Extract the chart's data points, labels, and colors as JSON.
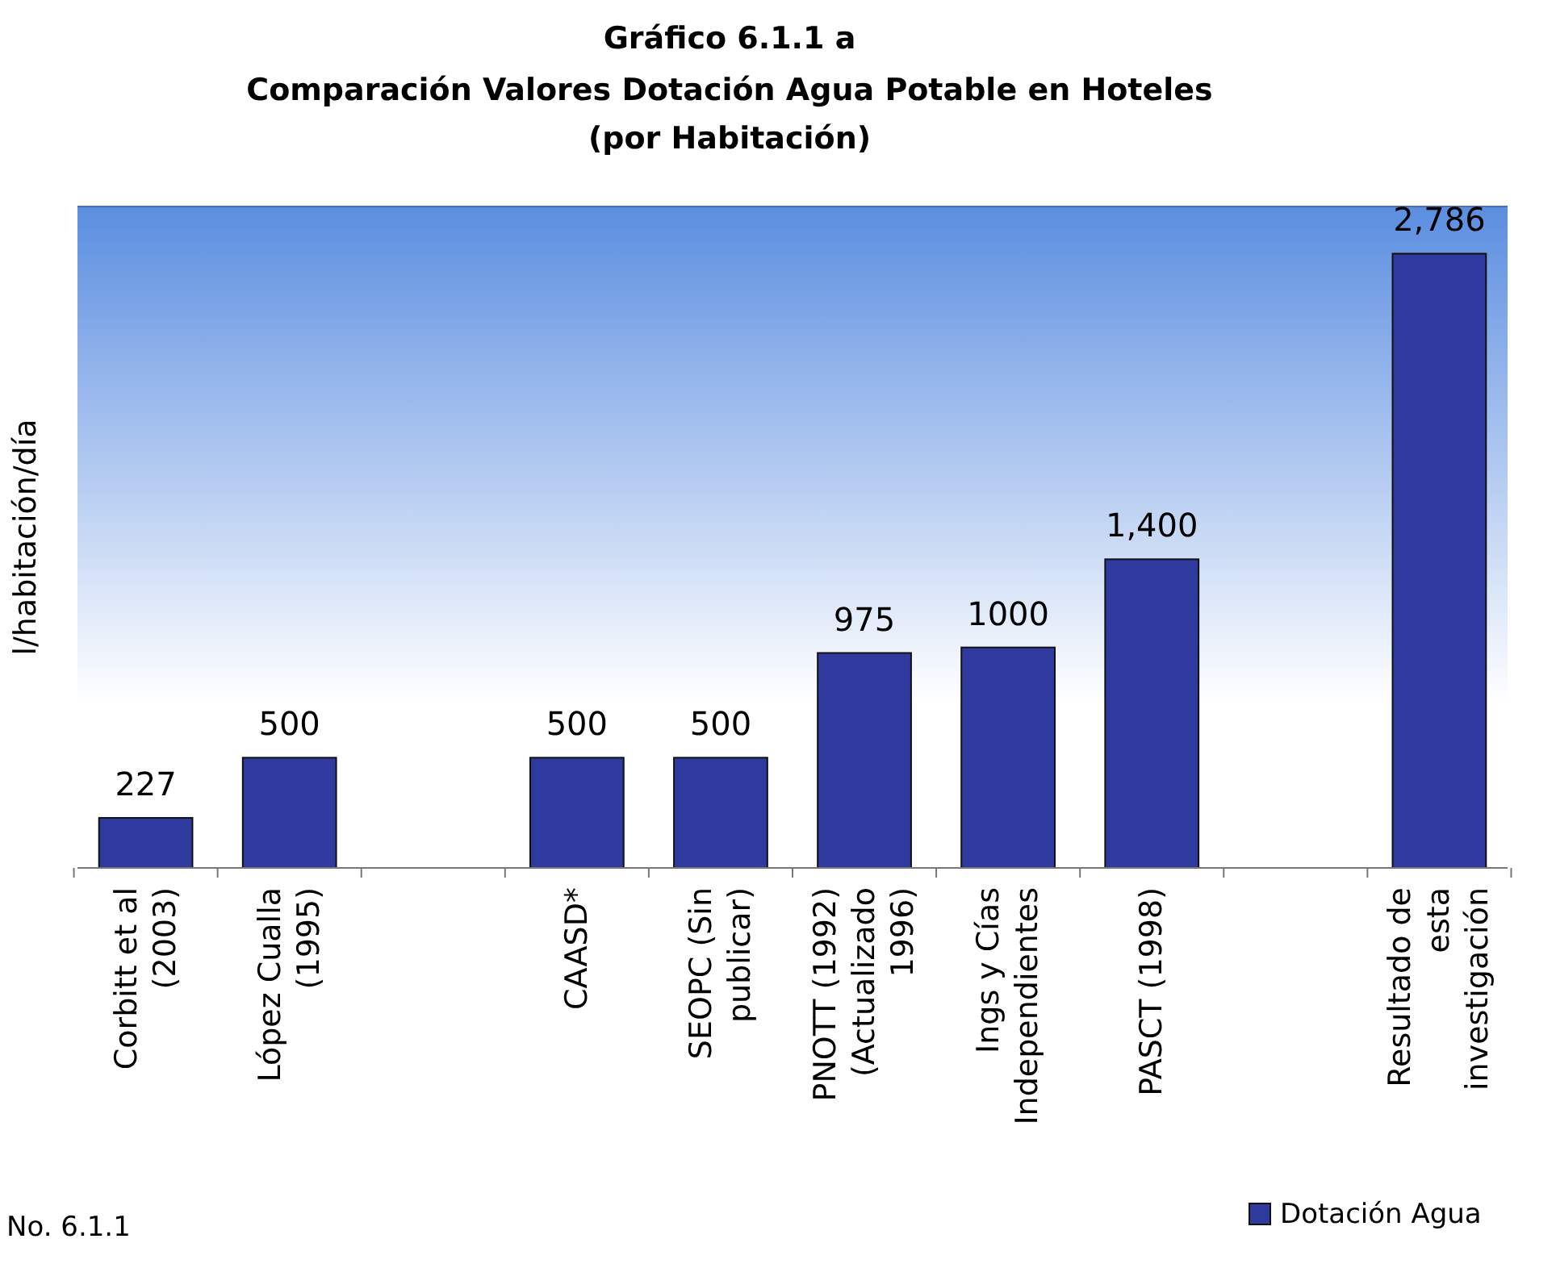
{
  "chart_data": {
    "type": "bar",
    "title": "Gráfico 6.1.1 a",
    "subtitle": "Comparación Valores Dotación Agua Potable en Hoteles\n(por Habitación)",
    "ylabel": "l/habitación/día",
    "categories": [
      "Corbitt et al\n(2003)",
      "López Cualla\n(1995)",
      null,
      "CAASD*",
      "SEOPC (Sin\npublicar)",
      "PNOTT (1992)\n(Actualizado\n1996)",
      "Ings y Cías\nIndependientes",
      "PASCT (1998)",
      null,
      "Resultado de\nesta\ninvestigación"
    ],
    "series": [
      {
        "name": "Dotación Agua",
        "color": "#2f3a9e",
        "values": [
          227,
          500,
          null,
          500,
          500,
          975,
          1000,
          1400,
          null,
          2786
        ],
        "value_labels": [
          "227",
          "500",
          null,
          "500",
          "500",
          "975",
          "1000",
          "1,400",
          null,
          "2,786"
        ]
      }
    ],
    "ylim": [
      0,
      3000
    ],
    "legend": "bottom right",
    "annotations": [
      "No. 6.1.1"
    ]
  }
}
